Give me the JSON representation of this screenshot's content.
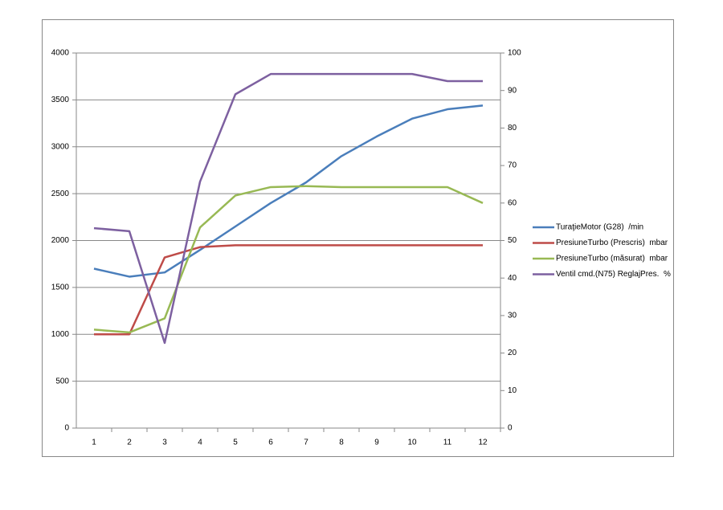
{
  "chart_data": {
    "type": "line",
    "categories": [
      "1",
      "2",
      "3",
      "4",
      "5",
      "6",
      "7",
      "8",
      "9",
      "10",
      "11",
      "12"
    ],
    "ylim": [
      0,
      4000
    ],
    "yticks": [
      0,
      500,
      1000,
      1500,
      2000,
      2500,
      3000,
      3500,
      4000
    ],
    "y2lim": [
      0,
      100
    ],
    "y2ticks": [
      0,
      10,
      20,
      30,
      40,
      50,
      60,
      70,
      80,
      90,
      100
    ],
    "grid": true,
    "legend": "right",
    "series": [
      {
        "name": "TuraţieMotor (G28)  /min",
        "color": "#4a7ebb",
        "values": [
          1700,
          1615,
          1660,
          1900,
          2150,
          2400,
          2620,
          2900,
          3110,
          3300,
          3400,
          3440
        ]
      },
      {
        "name": "PresiuneTurbo (Prescris)  mbar",
        "color": "#be4b48",
        "values": [
          1000,
          1000,
          1820,
          1930,
          1950,
          1950,
          1950,
          1950,
          1950,
          1950,
          1950,
          1950
        ]
      },
      {
        "name": "PresiuneTurbo (măsurat)  mbar",
        "color": "#98b954",
        "values": [
          1050,
          1020,
          1170,
          2140,
          2480,
          2570,
          2580,
          2570,
          2570,
          2570,
          2570,
          2400
        ]
      },
      {
        "name": "Ventil cmd.(N75) ReglajPres.  %",
        "color": "#7d60a0",
        "axis": "y2",
        "values": [
          53.3,
          52.5,
          22.7,
          65.7,
          89,
          94.4,
          94.4,
          94.4,
          94.4,
          94.4,
          92.5,
          92.5
        ]
      }
    ]
  }
}
